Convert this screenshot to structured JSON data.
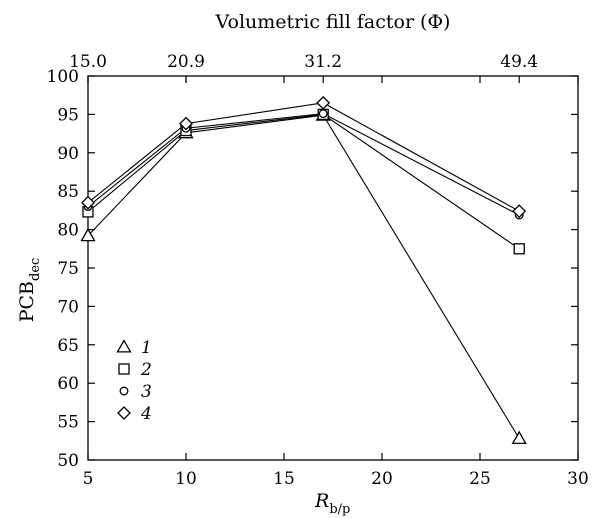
{
  "chart_data": {
    "type": "line",
    "xlabel": "R",
    "xlabel_sub": "b/p",
    "ylabel": "PCB",
    "ylabel_sub": "dec",
    "top_xlabel": "Volumetric fill factor (Φ)",
    "xlim": [
      5,
      30
    ],
    "ylim": [
      50,
      100
    ],
    "x_ticks": [
      "5",
      "10",
      "15",
      "20",
      "25",
      "30"
    ],
    "y_ticks": [
      "50",
      "55",
      "60",
      "65",
      "70",
      "75",
      "80",
      "85",
      "90",
      "95",
      "100"
    ],
    "top_ticks": [
      {
        "x": 5,
        "label": "15.0"
      },
      {
        "x": 10,
        "label": "20.9"
      },
      {
        "x": 17,
        "label": "31.2"
      },
      {
        "x": 27,
        "label": "49.4"
      }
    ],
    "x": [
      5,
      10,
      17,
      27
    ],
    "series": [
      {
        "name": "1",
        "marker": "triangle",
        "values": [
          79.2,
          92.6,
          94.9,
          52.8
        ]
      },
      {
        "name": "2",
        "marker": "square",
        "values": [
          82.3,
          92.9,
          95.0,
          77.5
        ]
      },
      {
        "name": "3",
        "marker": "circle",
        "values": [
          83.0,
          93.2,
          95.1,
          81.9
        ]
      },
      {
        "name": "4",
        "marker": "diamond",
        "values": [
          83.5,
          93.8,
          96.5,
          82.4
        ]
      }
    ],
    "legend_position": "bottom-left",
    "grid": false
  }
}
